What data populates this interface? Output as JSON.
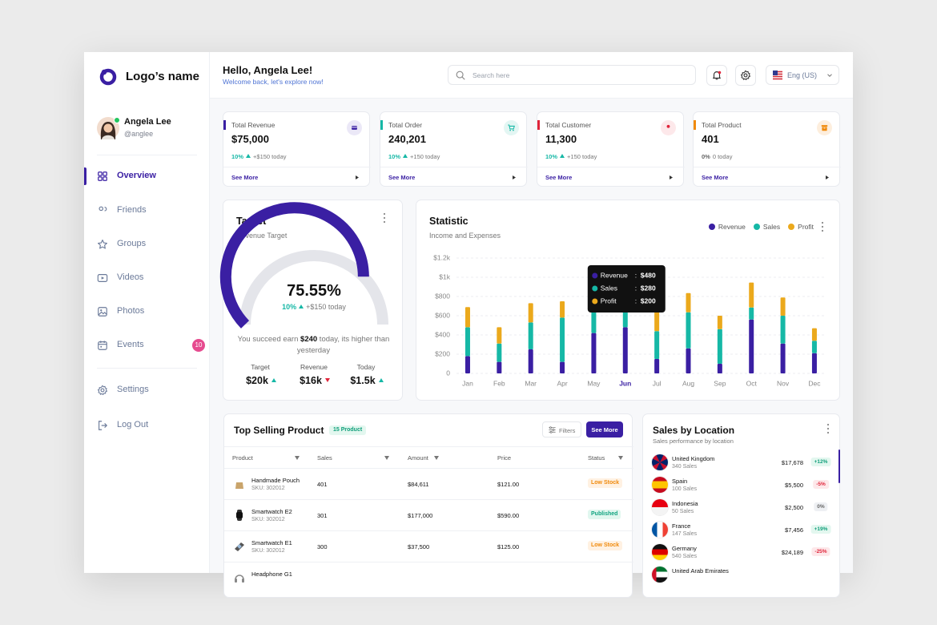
{
  "sidebar": {
    "logo": "Logo’s name",
    "user": {
      "name": "Angela Lee",
      "handle": "@anglee"
    },
    "nav": [
      {
        "label": "Overview"
      },
      {
        "label": "Friends"
      },
      {
        "label": "Groups"
      },
      {
        "label": "Videos"
      },
      {
        "label": "Photos"
      },
      {
        "label": "Events",
        "badge": "10"
      },
      {
        "label": "Settings"
      },
      {
        "label": "Log Out"
      }
    ]
  },
  "header": {
    "greeting": "Hello, Angela Lee!",
    "subtitle": "Welcome back, let's explore now!",
    "search_placeholder": "Search here",
    "language": "Eng (US)"
  },
  "cards": [
    {
      "label": "Total Revenue",
      "value": "$75,000",
      "change": "10%",
      "trend": "up",
      "delta": "+$150 today",
      "link": "See More"
    },
    {
      "label": "Total Order",
      "value": "240,201",
      "change": "10%",
      "trend": "up",
      "delta": "+150 today",
      "link": "See More"
    },
    {
      "label": "Total Customer",
      "value": "11,300",
      "change": "10%",
      "trend": "up",
      "delta": "+150 today",
      "link": "See More"
    },
    {
      "label": "Total Product",
      "value": "401",
      "change": "0%",
      "trend": "flat",
      "delta": "0 today",
      "link": "See More"
    }
  ],
  "target": {
    "title": "Target",
    "subtitle": "Revenue Target",
    "progress": 75.55,
    "range": [
      0,
      100
    ],
    "progress_label": "75.55%",
    "change": "10%",
    "delta": "+$150 today",
    "message": [
      "You succeed earn ",
      "$240",
      " today, its higher than yesterday"
    ],
    "stats": [
      {
        "label": "Target",
        "value": "$20k",
        "trend": "up"
      },
      {
        "label": "Revenue",
        "value": "$16k",
        "trend": "down"
      },
      {
        "label": "Today",
        "value": "$1.5k",
        "trend": "up"
      }
    ]
  },
  "chart_data": {
    "type": "bar",
    "stacked": true,
    "title": "Statistic",
    "subtitle": "Income and Expenses",
    "categories": [
      "Jan",
      "Feb",
      "Mar",
      "Apr",
      "May",
      "Jun",
      "Jul",
      "Aug",
      "Sep",
      "Oct",
      "Nov",
      "Dec"
    ],
    "series": [
      {
        "name": "Revenue",
        "color": "#3a1fa3",
        "values": [
          180,
          120,
          250,
          120,
          420,
          480,
          150,
          260,
          100,
          560,
          310,
          210
        ]
      },
      {
        "name": "Sales",
        "color": "#16b8a6",
        "values": [
          300,
          190,
          280,
          460,
          300,
          280,
          290,
          375,
          360,
          125,
          290,
          130
        ]
      },
      {
        "name": "Profit",
        "color": "#eba91c",
        "values": [
          210,
          170,
          200,
          170,
          180,
          200,
          220,
          200,
          140,
          260,
          190,
          130
        ]
      }
    ],
    "ylim": [
      0,
      1200
    ],
    "yticks": [
      0,
      {
        "value": 200,
        "label": "$200"
      },
      {
        "value": 400,
        "label": "$400"
      },
      {
        "value": 600,
        "label": "$600"
      },
      {
        "value": 800,
        "label": "$800"
      },
      {
        "value": 1000,
        "label": "$1k"
      },
      {
        "value": 1200,
        "label": "$1.2k"
      }
    ],
    "grid": true,
    "legend": "top-right",
    "tooltip": {
      "category": "Jun",
      "separator": ":",
      "labels": [
        "$480",
        "$280",
        "$200"
      ]
    }
  },
  "top_selling": {
    "title": "Top Selling Product",
    "badge": "15 Product",
    "filter": "Filters",
    "button": "See More",
    "columns": [
      "Product",
      "Sales",
      "Amount",
      "Price",
      "Status"
    ],
    "rows": [
      {
        "name": "Handmade Pouch",
        "sku": "SKU: 302012",
        "sales": "401",
        "amount": "$84,611",
        "price": "$121.00",
        "status": "Low Stock",
        "tone": "warning"
      },
      {
        "name": "Smartwatch E2",
        "sku": "SKU: 302012",
        "sales": "301",
        "amount": "$177,000",
        "price": "$590.00",
        "status": "Published",
        "tone": "success"
      },
      {
        "name": "Smartwatch E1",
        "sku": "SKU: 302012",
        "sales": "300",
        "amount": "$37,500",
        "price": "$125.00",
        "status": "Low Stock",
        "tone": "warning"
      },
      {
        "name": "Headphone G1"
      }
    ]
  },
  "sales_by_location": {
    "title": "Sales by Location",
    "subtitle": "Sales performance by location",
    "rows": [
      {
        "country": "United Kingdom",
        "sales": "340 Sales",
        "amount": "$17,678",
        "change": "+12%",
        "tone": "up"
      },
      {
        "country": "Spain",
        "sales": "100 Sales",
        "amount": "$5,500",
        "change": "-5%",
        "tone": "down"
      },
      {
        "country": "Indonesia",
        "sales": "50 Sales",
        "amount": "$2,500",
        "change": "0%",
        "tone": "flat"
      },
      {
        "country": "France",
        "sales": "147 Sales",
        "amount": "$7,456",
        "change": "+19%",
        "tone": "up"
      },
      {
        "country": "Germany",
        "sales": "540 Sales",
        "amount": "$24,189",
        "change": "-25%",
        "tone": "down"
      },
      {
        "country": "United Arab Emirates"
      }
    ]
  }
}
